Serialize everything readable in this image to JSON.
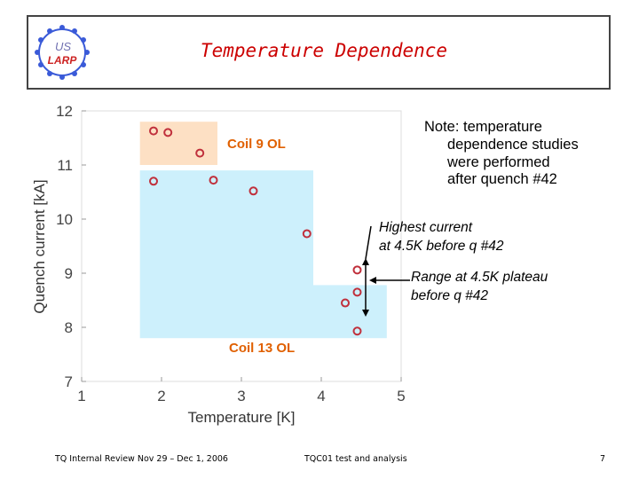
{
  "header": {
    "title": "Temperature Dependence",
    "logo_text_top": "US",
    "logo_text_bottom": "LARP"
  },
  "note": {
    "lines": [
      "Note: temperature",
      "dependence studies",
      "were performed",
      "after quench #42"
    ]
  },
  "annotations": {
    "highest_current": [
      "Highest current",
      "at 4.5K before q #42"
    ],
    "range": [
      "Range at 4.5K plateau",
      "before q #42"
    ]
  },
  "regions": {
    "coil9": {
      "label": "Coil 9 OL",
      "color": "#fde0c4"
    },
    "coil13": {
      "label": "Coil 13 OL",
      "color": "#cdf0fc"
    }
  },
  "footer": {
    "left": "TQ Internal Review Nov 29 – Dec 1, 2006",
    "center": "TQC01 test and analysis",
    "right": "7"
  },
  "chart_data": {
    "type": "scatter",
    "xlabel": "Temperature [K]",
    "ylabel": "Quench current [kA]",
    "xlim": [
      1,
      5
    ],
    "ylim": [
      7,
      12
    ],
    "xticks": [
      1,
      2,
      3,
      4,
      5
    ],
    "yticks": [
      7,
      8,
      9,
      10,
      11,
      12
    ],
    "marker_color": "#c0303c",
    "points": [
      {
        "x": 1.9,
        "y": 11.63
      },
      {
        "x": 2.08,
        "y": 11.6
      },
      {
        "x": 2.48,
        "y": 11.22
      },
      {
        "x": 1.9,
        "y": 10.7
      },
      {
        "x": 2.65,
        "y": 10.72
      },
      {
        "x": 3.15,
        "y": 10.52
      },
      {
        "x": 3.82,
        "y": 9.73
      },
      {
        "x": 4.45,
        "y": 9.06
      },
      {
        "x": 4.45,
        "y": 8.65
      },
      {
        "x": 4.3,
        "y": 8.45
      },
      {
        "x": 4.45,
        "y": 7.93
      }
    ],
    "regions": [
      {
        "name": "coil9",
        "x": [
          1.73,
          2.7
        ],
        "y": [
          11.0,
          11.8
        ]
      },
      {
        "name": "coil13",
        "x": [
          1.73,
          3.9
        ],
        "y": [
          7.8,
          10.9
        ]
      },
      {
        "name": "coil13",
        "x": [
          3.9,
          4.82
        ],
        "y": [
          7.8,
          8.78
        ]
      }
    ]
  }
}
